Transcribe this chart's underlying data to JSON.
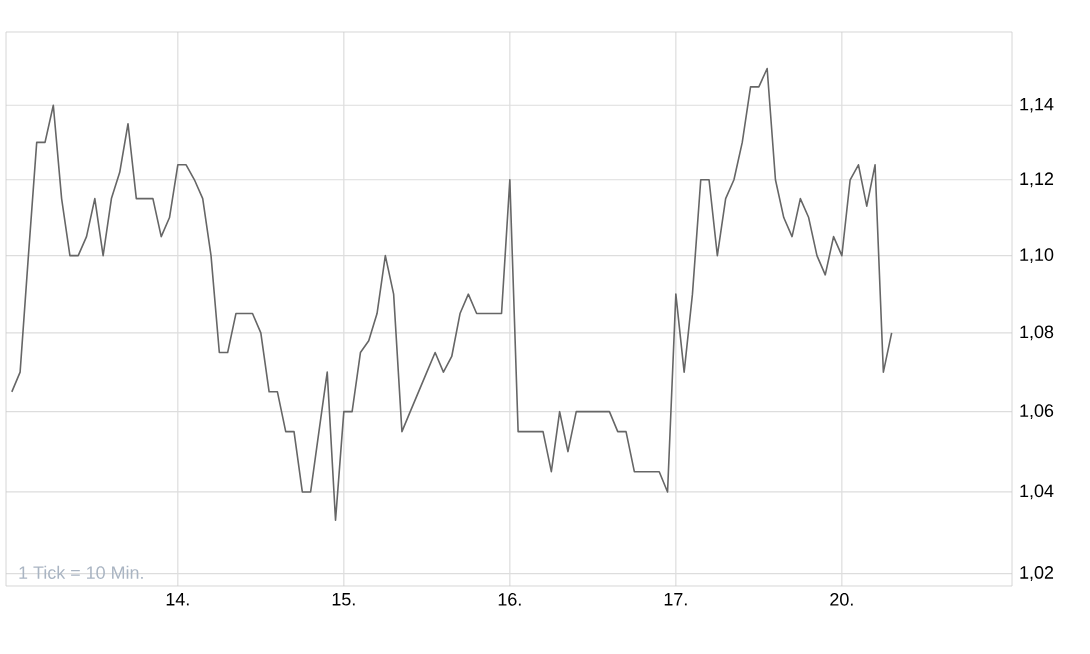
{
  "chart_data": {
    "type": "line",
    "categories": [
      null,
      null,
      null,
      null,
      null,
      null,
      null,
      null,
      null,
      null,
      null,
      null,
      null,
      null,
      null,
      null,
      null,
      null,
      null,
      null,
      "14.",
      null,
      null,
      null,
      null,
      null,
      null,
      null,
      null,
      null,
      null,
      null,
      null,
      null,
      null,
      null,
      null,
      null,
      null,
      null,
      "15.",
      null,
      null,
      null,
      null,
      null,
      null,
      null,
      null,
      null,
      null,
      null,
      null,
      null,
      null,
      null,
      null,
      null,
      null,
      null,
      "16.",
      null,
      null,
      null,
      null,
      null,
      null,
      null,
      null,
      null,
      null,
      null,
      null,
      null,
      null,
      null,
      null,
      null,
      null,
      null,
      "17.",
      null,
      null,
      null,
      null,
      null,
      null,
      null,
      null,
      null,
      null,
      null,
      null,
      null,
      null,
      null,
      null,
      null,
      null,
      null,
      "20.",
      null,
      null,
      null,
      null,
      null,
      null,
      null,
      null,
      null,
      null,
      null,
      null,
      null,
      null,
      null,
      null,
      null,
      null,
      null,
      null
    ],
    "series": [
      {
        "color": "#666666",
        "values": [
          1.065,
          1.07,
          1.1,
          1.13,
          1.13,
          1.14,
          1.115,
          1.1,
          1.1,
          1.105,
          1.115,
          1.1,
          1.115,
          1.122,
          1.135,
          1.115,
          1.115,
          1.115,
          1.105,
          1.11,
          1.124,
          1.124,
          1.12,
          1.115,
          1.1,
          1.075,
          1.075,
          1.085,
          1.085,
          1.085,
          1.08,
          1.065,
          1.065,
          1.055,
          1.055,
          1.04,
          1.04,
          1.055,
          1.07,
          1.033,
          1.06,
          1.06,
          1.075,
          1.078,
          1.085,
          1.1,
          1.09,
          1.055,
          1.06,
          1.065,
          1.07,
          1.075,
          1.07,
          1.074,
          1.085,
          1.09,
          1.085,
          1.085,
          1.085,
          1.085,
          1.12,
          1.055,
          1.055,
          1.055,
          1.055,
          1.045,
          1.06,
          1.05,
          1.06,
          1.06,
          1.06,
          1.06,
          1.06,
          1.055,
          1.055,
          1.045,
          1.045,
          1.045,
          1.045,
          1.04,
          1.09,
          1.07,
          1.09,
          1.12,
          1.12,
          1.1,
          1.115,
          1.12,
          1.13,
          1.145,
          1.145,
          1.15,
          1.12,
          1.11,
          1.105,
          1.115,
          1.11,
          1.1,
          1.095,
          1.105,
          1.1,
          1.12,
          1.124,
          1.113,
          1.124,
          1.07,
          1.08,
          null,
          null,
          null,
          null,
          null,
          null,
          null,
          null,
          null,
          null,
          null,
          null,
          null,
          null
        ]
      }
    ],
    "ylim": [
      1.017,
      1.16
    ],
    "yticks": [
      {
        "value": 1.02,
        "label": "1,02"
      },
      {
        "value": 1.04,
        "label": "1,04"
      },
      {
        "value": 1.06,
        "label": "1,06"
      },
      {
        "value": 1.08,
        "label": "1,08"
      },
      {
        "value": 1.1,
        "label": "1,10"
      },
      {
        "value": 1.12,
        "label": "1,12"
      },
      {
        "value": 1.14,
        "label": "1,14"
      }
    ],
    "log": true,
    "grid": true,
    "annotations": [
      "1 Tick = 10 Min."
    ]
  }
}
